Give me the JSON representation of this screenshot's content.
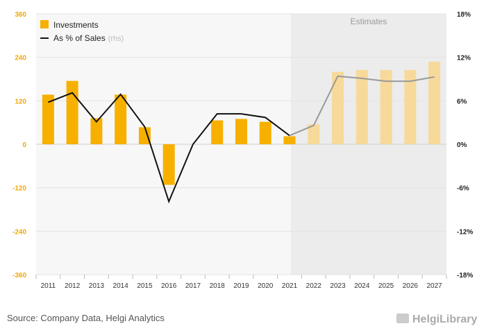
{
  "source": "Source: Company Data, Helgi Analytics",
  "logo": {
    "text": "HelgiLibrary"
  },
  "estimates_label": "Estimates",
  "colors": {
    "bar": "#f7b000",
    "bar_estimate": "#f7d99a",
    "line": "#111111",
    "line_estimate": "#999999",
    "estimate_bg": "#ececec",
    "plot_bg": "#f7f7f7",
    "left_axis": "#f2a900"
  },
  "chart_data": {
    "type": "bar",
    "categories": [
      "2011",
      "2012",
      "2013",
      "2014",
      "2015",
      "2016",
      "2017",
      "2018",
      "2019",
      "2020",
      "2021",
      "2022",
      "2023",
      "2024",
      "2025",
      "2026",
      "2027"
    ],
    "series": [
      {
        "name": "Investments",
        "axis": "left",
        "type": "bar",
        "values": [
          137,
          175,
          72,
          137,
          47,
          -112,
          0,
          66,
          70,
          62,
          22,
          55,
          200,
          205,
          205,
          205,
          228
        ]
      },
      {
        "name": "As % of Sales",
        "axis": "right",
        "type": "line",
        "values": [
          5.8,
          7.1,
          3.1,
          6.9,
          2.4,
          -7.9,
          0.0,
          4.2,
          4.2,
          3.7,
          1.2,
          2.6,
          9.4,
          9.1,
          8.7,
          8.7,
          9.3
        ]
      }
    ],
    "legend": [
      "Investments",
      "As % of Sales"
    ],
    "legend_rhs_suffix": "(rhs)",
    "legend_position": "top-left",
    "estimates_from": "2022",
    "y_left": {
      "min": -360,
      "max": 360,
      "ticks": [
        "-360",
        "-240",
        "-120",
        "0",
        "120",
        "240",
        "360"
      ]
    },
    "y_right": {
      "min": -18,
      "max": 18,
      "ticks": [
        "-18%",
        "-12%",
        "-6%",
        "0%",
        "6%",
        "12%",
        "18%"
      ]
    },
    "grid": true
  }
}
